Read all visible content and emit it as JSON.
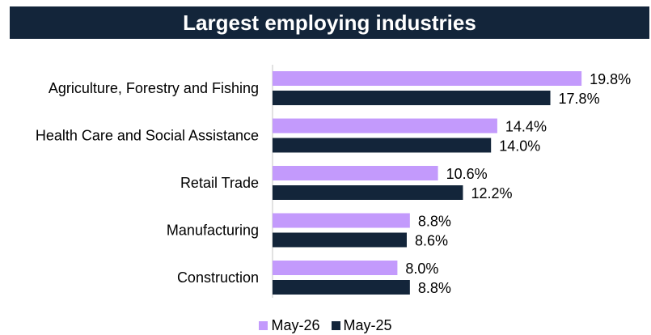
{
  "chart_data": {
    "type": "bar",
    "orientation": "horizontal",
    "title": "Largest employing industries",
    "categories": [
      "Agriculture, Forestry and Fishing",
      "Health Care and Social Assistance",
      "Retail Trade",
      "Manufacturing",
      "Construction"
    ],
    "series": [
      {
        "name": "May-26",
        "color": "#c39afc",
        "values": [
          19.8,
          14.4,
          10.6,
          8.8,
          8.0
        ],
        "labels": [
          "19.8%",
          "14.4%",
          "10.6%",
          "8.8%",
          "8.0%"
        ]
      },
      {
        "name": "May-25",
        "color": "#13253a",
        "values": [
          17.8,
          14.0,
          12.2,
          8.6,
          8.8
        ],
        "labels": [
          "17.8%",
          "14.0%",
          "12.2%",
          "8.6%",
          "8.8%"
        ]
      }
    ],
    "xlim": [
      0,
      20
    ],
    "grid": false,
    "legend": "bottom"
  }
}
